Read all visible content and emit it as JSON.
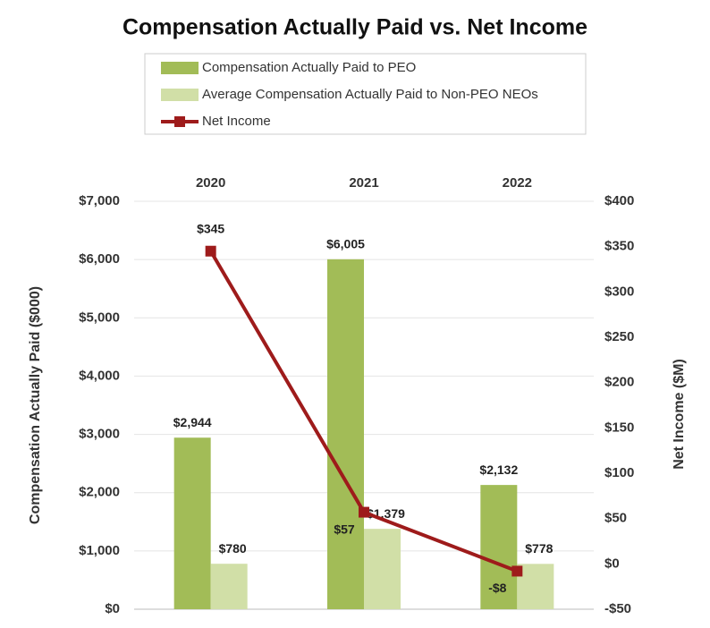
{
  "chart_data": {
    "type": "bar",
    "title": "Compensation Actually Paid vs. Net Income",
    "categories": [
      "2020",
      "2021",
      "2022"
    ],
    "y_label": "Compensation Actually Paid ($000)",
    "y2_label": "Net Income ($M)",
    "ylim": [
      0,
      7000
    ],
    "yticks": [
      {
        "value": 0,
        "label": "$0"
      },
      {
        "value": 1000,
        "label": "$1,000"
      },
      {
        "value": 2000,
        "label": "$2,000"
      },
      {
        "value": 3000,
        "label": "$3,000"
      },
      {
        "value": 4000,
        "label": "$4,000"
      },
      {
        "value": 5000,
        "label": "$5,000"
      },
      {
        "value": 6000,
        "label": "$6,000"
      },
      {
        "value": 7000,
        "label": "$7,000"
      }
    ],
    "y2lim": [
      -50,
      400
    ],
    "y2ticks": [
      {
        "value": -50,
        "label": "-$50"
      },
      {
        "value": 0,
        "label": "$0"
      },
      {
        "value": 50,
        "label": "$50"
      },
      {
        "value": 100,
        "label": "$100"
      },
      {
        "value": 150,
        "label": "$150"
      },
      {
        "value": 200,
        "label": "$200"
      },
      {
        "value": 250,
        "label": "$250"
      },
      {
        "value": 300,
        "label": "$300"
      },
      {
        "value": 350,
        "label": "$350"
      },
      {
        "value": 400,
        "label": "$400"
      }
    ],
    "grid": true,
    "legend": "top",
    "series": [
      {
        "name": "Compensation Actually Paid to PEO",
        "color": "#a2bc57",
        "type": "bar",
        "values": [
          2944,
          6005,
          2132
        ],
        "value_labels": [
          "$2,944",
          "$6,005",
          "$2,132"
        ]
      },
      {
        "name": "Average Compensation Actually Paid to Non-PEO NEOs",
        "color": "#d1dfa7",
        "type": "bar",
        "values": [
          780,
          1379,
          778
        ],
        "value_labels": [
          "$780",
          "$1,379",
          "$778"
        ]
      },
      {
        "name": "Net Income",
        "color": "#9e1b1b",
        "type": "line",
        "axis": "y2",
        "values": [
          345,
          57,
          -8
        ],
        "value_labels": [
          "$345",
          "$57",
          "-$8"
        ]
      }
    ]
  }
}
